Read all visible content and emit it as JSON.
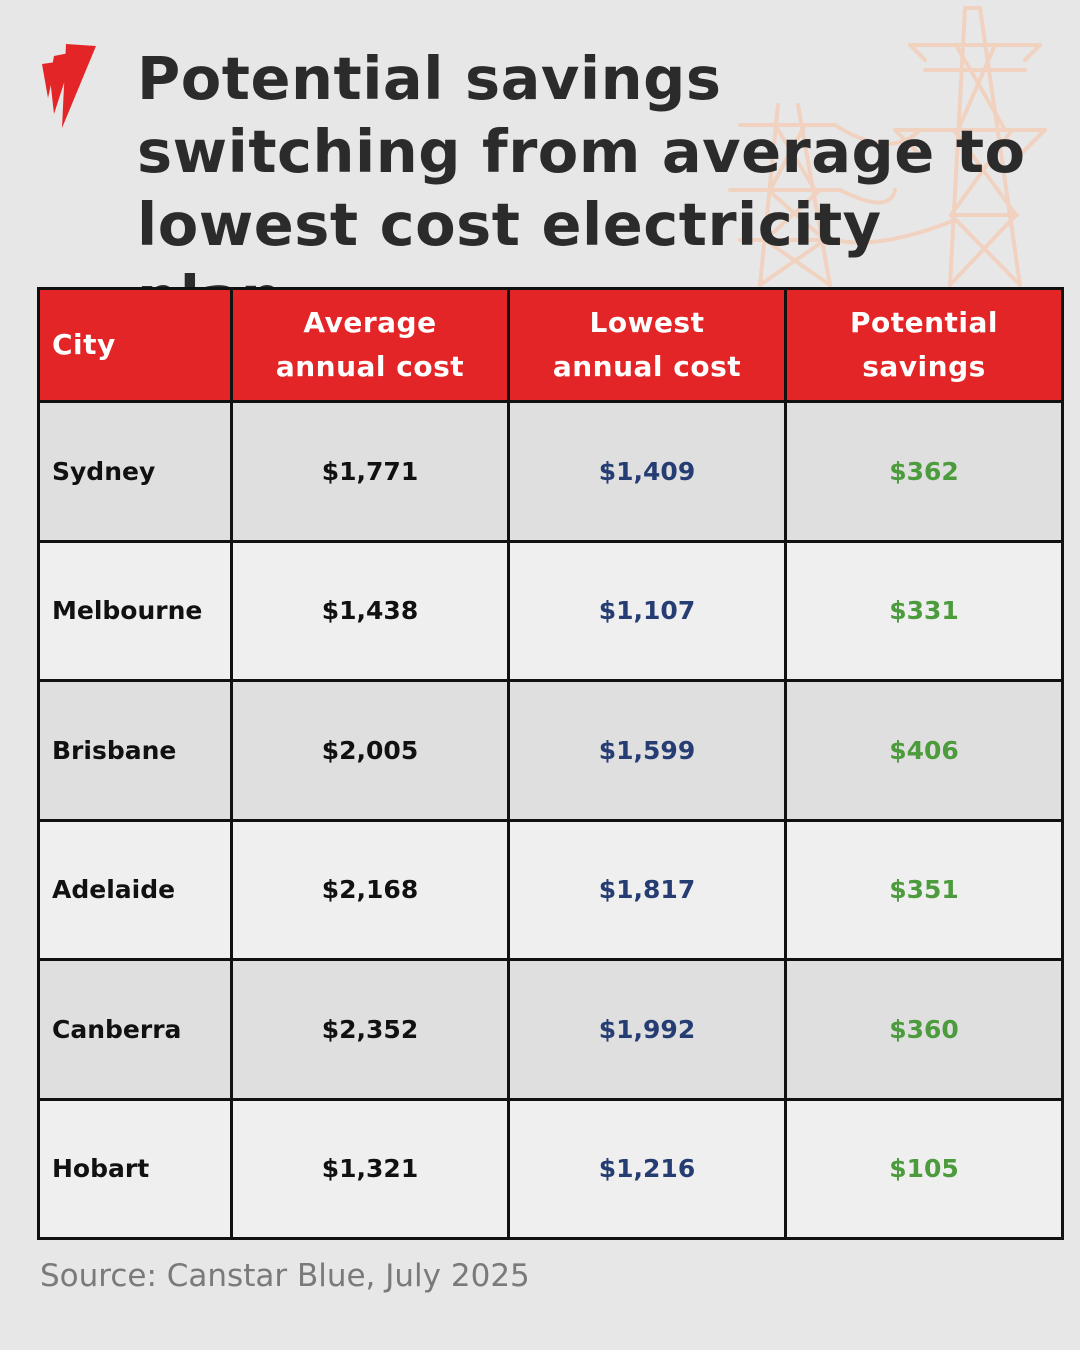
{
  "title": "Potential savings switching from average to lowest cost electricity plan",
  "colors": {
    "header_bg": "#e42527",
    "lowest_text": "#263d73",
    "savings_text": "#4c9b3d",
    "background": "#e7e7e7"
  },
  "icons": {
    "logo": "sbs-logo",
    "background_art": "power-pylon-icons"
  },
  "chart_data": {
    "type": "table",
    "columns": [
      "City",
      "Average annual cost",
      "Lowest annual cost",
      "Potential savings"
    ],
    "rows": [
      {
        "city": "Sydney",
        "average": "$1,771",
        "lowest": "$1,409",
        "savings": "$362"
      },
      {
        "city": "Melbourne",
        "average": "$1,438",
        "lowest": "$1,107",
        "savings": "$331"
      },
      {
        "city": "Brisbane",
        "average": "$2,005",
        "lowest": "$1,599",
        "savings": "$406"
      },
      {
        "city": "Adelaide",
        "average": "$2,168",
        "lowest": "$1,817",
        "savings": "$351"
      },
      {
        "city": "Canberra",
        "average": "$2,352",
        "lowest": "$1,992",
        "savings": "$360"
      },
      {
        "city": "Hobart",
        "average": "$1,321",
        "lowest": "$1,216",
        "savings": "$105"
      }
    ]
  },
  "source": "Source: Canstar Blue, July 2025"
}
